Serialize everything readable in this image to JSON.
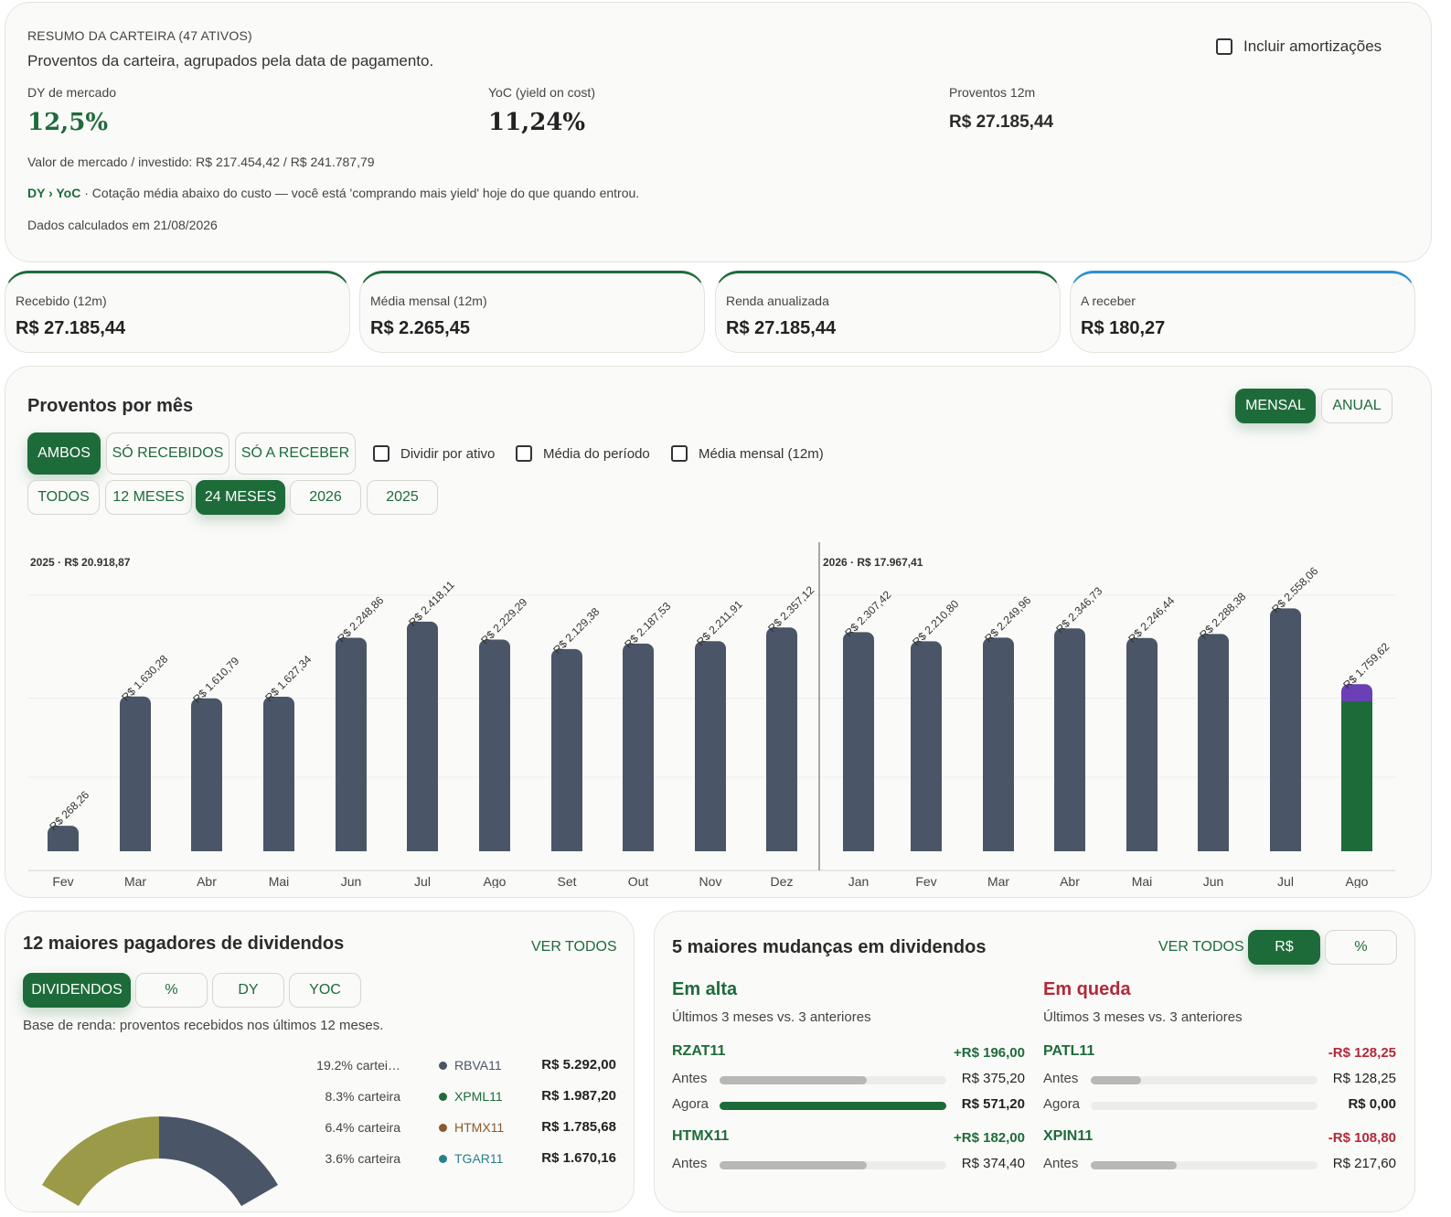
{
  "summary": {
    "heading": "RESUMO DA CARTEIRA (47 ATIVOS)",
    "subtitle": "Proventos da carteira, agrupados pela data de pagamento.",
    "include_amort": "Incluir amortizações",
    "dy_label": "DY de mercado",
    "dy_value": "12,5%",
    "yoc_label": "YoC (yield on cost)",
    "yoc_value": "11,24%",
    "p12_label": "Proventos 12m",
    "p12_value": "R$ 27.185,44",
    "market_line": "Valor de mercado / investido: R$ 217.454,42 / R$ 241.787,79",
    "dy_yoc_tag": "DY › YoC",
    "dy_yoc_text": " · Cotação média abaixo do custo — você está 'comprando mais yield' hoje do que quando entrou.",
    "calc_date": "Dados calculados em 21/08/2026"
  },
  "stats": [
    {
      "label": "Recebido (12m)",
      "value": "R$ 27.185,44"
    },
    {
      "label": "Média mensal (12m)",
      "value": "R$ 2.265,45"
    },
    {
      "label": "Renda anualizada",
      "value": "R$ 27.185,44"
    },
    {
      "label": "A receber",
      "value": "R$ 180,27"
    }
  ],
  "chart_section": {
    "title": "Proventos por mês",
    "view_mensal": "MENSAL",
    "view_anual": "ANUAL",
    "f_ambos": "AMBOS",
    "f_recebidos": "SÓ RECEBIDOS",
    "f_receber": "SÓ A RECEBER",
    "chk_dividir": "Dividir por ativo",
    "chk_media_periodo": "Média do período",
    "chk_media_mensal": "Média mensal (12m)",
    "p_todos": "TODOS",
    "p_12": "12 MESES",
    "p_24": "24 MESES",
    "p_2026": "2026",
    "p_2025": "2025"
  },
  "chart_data": {
    "type": "bar",
    "group_labels": [
      "2025 · R$ 20.918,87",
      "2026 · R$ 17.967,41"
    ],
    "categories": [
      "Fev",
      "Mar",
      "Abr",
      "Mai",
      "Jun",
      "Jul",
      "Ago",
      "Set",
      "Out",
      "Nov",
      "Dez",
      "Jan",
      "Fev",
      "Mar",
      "Abr",
      "Mai",
      "Jun",
      "Jul",
      "Ago"
    ],
    "years": [
      "2025",
      "2025",
      "2025",
      "2025",
      "2025",
      "2025",
      "2025",
      "2025",
      "2025",
      "2025",
      "2025",
      "2026",
      "2026",
      "2026",
      "2026",
      "2026",
      "2026",
      "2026",
      "2026"
    ],
    "values": [
      268.26,
      1630.28,
      1610.79,
      1627.34,
      2248.86,
      2418.11,
      2229.29,
      2129.38,
      2187.53,
      2211.91,
      2357.12,
      2307.42,
      2210.8,
      2249.96,
      2346.73,
      2246.44,
      2288.38,
      2558.06,
      1759.62
    ],
    "value_labels": [
      "R$ 268,26",
      "R$ 1.630,28",
      "R$ 1.610,79",
      "R$ 1.627,34",
      "R$ 2.248,86",
      "R$ 2.418,11",
      "R$ 2.229,29",
      "R$ 2.129,38",
      "R$ 2.187,53",
      "R$ 2.211,91",
      "R$ 2.357,12",
      "R$ 2.307,42",
      "R$ 2.210,80",
      "R$ 2.249,96",
      "R$ 2.346,73",
      "R$ 2.246,44",
      "R$ 2.288,38",
      "R$ 2.558,06",
      "R$ 1.759,62"
    ],
    "last_bar_to_receive": 180.27,
    "ylim": [
      0,
      2600
    ],
    "colors": {
      "received": "#4a5568",
      "current_received": "#1e6b3a",
      "to_receive": "#6b3fb5"
    }
  },
  "payers": {
    "title": "12 maiores pagadores de dividendos",
    "view_all": "VER TODOS",
    "tab_div": "DIVIDENDOS",
    "tab_pct": "%",
    "tab_dy": "DY",
    "tab_yoc": "YOC",
    "note": "Base de renda: proventos recebidos nos últimos 12 meses.",
    "items": [
      {
        "pct": "19.2% cartei…",
        "name": "RBVA11",
        "value": "R$ 5.292,00",
        "color": "#4a5568"
      },
      {
        "pct": "8.3% carteira",
        "name": "XPML11",
        "value": "R$ 1.987,20",
        "color": "#1e6b3a"
      },
      {
        "pct": "6.4% carteira",
        "name": "HTMX11",
        "value": "R$ 1.785,68",
        "color": "#8a5a2b"
      },
      {
        "pct": "3.6% carteira",
        "name": "TGAR11",
        "value": "R$ 1.670,16",
        "color": "#2a7f8f"
      }
    ]
  },
  "changes": {
    "title": "5 maiores mudanças em dividendos",
    "view_all": "VER TODOS",
    "tab_rs": "R$",
    "tab_pct": "%",
    "up_title": "Em alta",
    "down_title": "Em queda",
    "period_note": "Últimos 3 meses vs. 3 anteriores",
    "antes": "Antes",
    "agora": "Agora",
    "up": [
      {
        "ticker": "RZAT11",
        "delta": "+R$ 196,00",
        "antes": "R$ 375,20",
        "agora": "R$ 571,20",
        "antes_frac": 0.65,
        "agora_frac": 1.0
      },
      {
        "ticker": "HTMX11",
        "delta": "+R$ 182,00",
        "antes": "R$ 374,40",
        "agora": "",
        "antes_frac": 0.65,
        "agora_frac": 0
      }
    ],
    "down": [
      {
        "ticker": "PATL11",
        "delta": "-R$ 128,25",
        "antes": "R$ 128,25",
        "agora": "R$ 0,00",
        "antes_frac": 0.22,
        "agora_frac": 0
      },
      {
        "ticker": "XPIN11",
        "delta": "-R$ 108,80",
        "antes": "R$ 217,60",
        "agora": "",
        "antes_frac": 0.38,
        "agora_frac": 0
      }
    ]
  }
}
